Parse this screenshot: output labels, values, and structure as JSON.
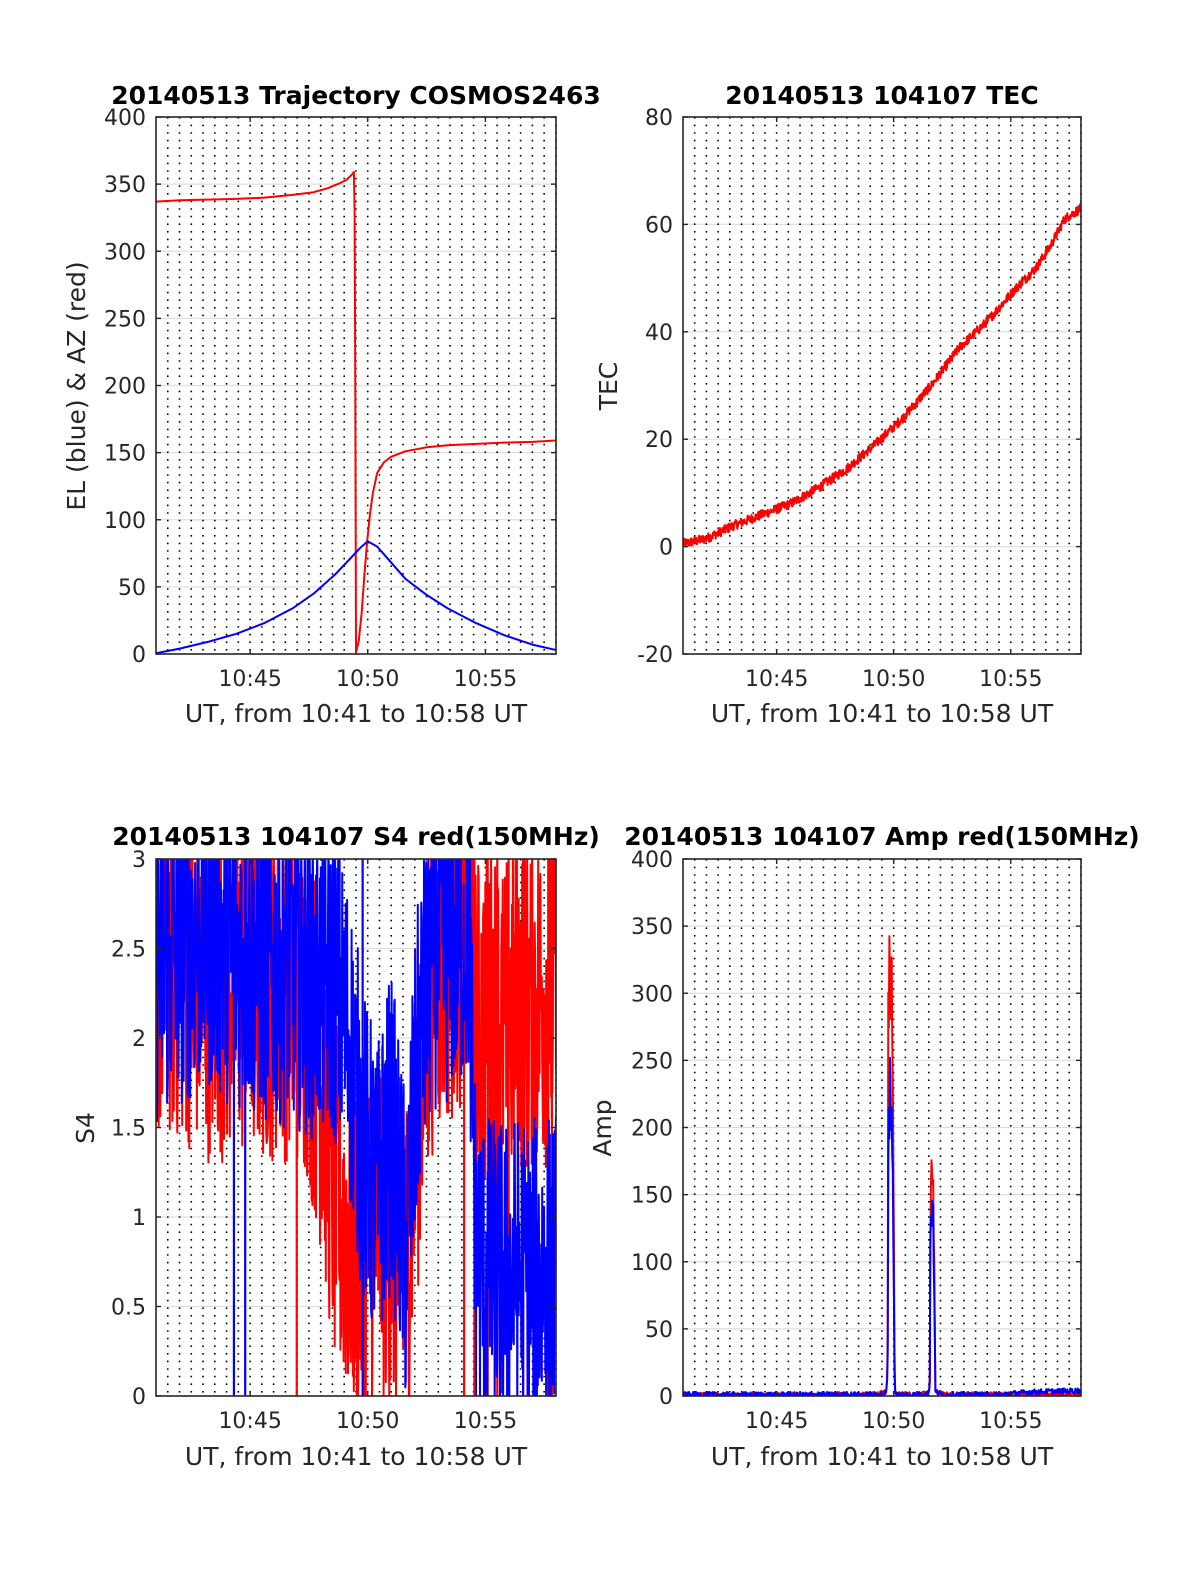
{
  "chart_data": [
    {
      "type": "line",
      "title": "20140513 Trajectory COSMOS2463",
      "xlabel": "UT, from 10:41 to 10:58 UT",
      "ylabel": "EL (blue) & AZ (red)",
      "xlim": [
        10.6833,
        10.9667
      ],
      "ylim": [
        0,
        400
      ],
      "yticks": [
        0,
        50,
        100,
        150,
        200,
        250,
        300,
        350,
        400
      ],
      "ytick_labels": [
        "0",
        "50",
        "100",
        "150",
        "200",
        "250",
        "300",
        "350",
        "400"
      ],
      "xticks": [
        10.75,
        10.8333,
        10.9167
      ],
      "xtick_labels": [
        "10:45",
        "10:50",
        "10:55"
      ],
      "grid": "y solid, x dotted every 30 s",
      "series": [
        {
          "color": "#ff0000",
          "x": [
            10.6833,
            10.7,
            10.72,
            10.74,
            10.76,
            10.78,
            10.795,
            10.805,
            10.812,
            10.818,
            10.822,
            10.8235,
            10.824,
            10.8245,
            10.825,
            10.827,
            10.829,
            10.831,
            10.833,
            10.835,
            10.837,
            10.84,
            10.845,
            10.85,
            10.86,
            10.875,
            10.89,
            10.91,
            10.93,
            10.95,
            10.9667
          ],
          "y": [
            337,
            338,
            338.5,
            339,
            340,
            342,
            344,
            347,
            350,
            353,
            357,
            359,
            330,
            200,
            1,
            10,
            30,
            60,
            85,
            105,
            120,
            135,
            143,
            147,
            151,
            154,
            155.5,
            156.5,
            157.5,
            158,
            159
          ]
        },
        {
          "color": "#0000ff",
          "x": [
            10.6833,
            10.7,
            10.72,
            10.74,
            10.76,
            10.78,
            10.795,
            10.81,
            10.82,
            10.828,
            10.8333,
            10.84,
            10.85,
            10.86,
            10.875,
            10.89,
            10.91,
            10.93,
            10.95,
            10.9667
          ],
          "y": [
            0.5,
            4,
            9,
            15,
            23,
            34,
            45,
            59,
            70,
            79,
            84,
            80,
            68,
            56,
            44,
            34,
            23,
            14,
            7,
            3
          ]
        }
      ]
    },
    {
      "type": "line",
      "title": "20140513 104107 TEC",
      "xlabel": "UT, from 10:41 to 10:58 UT",
      "ylabel": "TEC",
      "xlim": [
        10.6833,
        10.9667
      ],
      "ylim": [
        -20,
        80
      ],
      "yticks": [
        -20,
        0,
        20,
        40,
        60,
        80
      ],
      "ytick_labels": [
        "-20",
        "0",
        "20",
        "40",
        "60",
        "80"
      ],
      "xticks": [
        10.75,
        10.8333,
        10.9167
      ],
      "xtick_labels": [
        "10:45",
        "10:50",
        "10:55"
      ],
      "grid": "y solid, x dotted every 30 s",
      "series": [
        {
          "color": "#ff0000",
          "noise": 0.9,
          "x": [
            10.6833,
            10.7,
            10.72,
            10.74,
            10.76,
            10.78,
            10.8,
            10.82,
            10.84,
            10.86,
            10.88,
            10.9,
            10.92,
            10.935,
            10.945,
            10.955,
            10.9667
          ],
          "y": [
            0.5,
            1.5,
            4,
            6,
            8,
            11,
            14.5,
            19,
            24,
            30,
            37,
            42,
            48,
            52,
            56,
            61,
            63
          ]
        }
      ]
    },
    {
      "type": "line",
      "title": "20140513 104107 S4 red(150MHz)",
      "xlabel": "UT, from 10:41 to 10:58 UT",
      "ylabel": "S4",
      "xlim": [
        10.6833,
        10.9667
      ],
      "ylim": [
        0,
        3
      ],
      "yticks": [
        0,
        0.5,
        1,
        1.5,
        2,
        2.5,
        3
      ],
      "ytick_labels": [
        "0",
        "0.5",
        "1",
        "1.5",
        "2",
        "2.5",
        "3"
      ],
      "xticks": [
        10.75,
        10.8333,
        10.9167
      ],
      "xtick_labels": [
        "10:45",
        "10:50",
        "10:55"
      ],
      "grid": "y solid, x dotted every 30 s",
      "series": [
        {
          "color": "#ff0000",
          "noise": 1.0,
          "x": [
            10.6833,
            10.7,
            10.72,
            10.74,
            10.76,
            10.78,
            10.79,
            10.8,
            10.81,
            10.82,
            10.83,
            10.84,
            10.85,
            10.86,
            10.87,
            10.88,
            10.89,
            10.9,
            10.905,
            10.91,
            10.92,
            10.93,
            10.94,
            10.95,
            10.9667
          ],
          "y": [
            2.4,
            2.4,
            2.3,
            2.3,
            2.3,
            2.3,
            2.2,
            1.8,
            1.1,
            0.9,
            0.8,
            1.0,
            0.9,
            0.7,
            1.7,
            2.4,
            2.5,
            2.6,
            2.6,
            2.0,
            2.2,
            2.0,
            2.2,
            2.2,
            2.3
          ],
          "drops_x": [
            10.783,
            10.9016,
            10.9089,
            10.9183,
            10.9251,
            10.9331,
            10.9434,
            10.9612,
            10.9638
          ]
        },
        {
          "color": "#0000ff",
          "noise": 0.9,
          "x": [
            10.6833,
            10.7,
            10.72,
            10.74,
            10.76,
            10.78,
            10.8,
            10.81,
            10.82,
            10.83,
            10.84,
            10.85,
            10.86,
            10.87,
            10.88,
            10.89,
            10.9,
            10.905,
            10.91,
            10.92,
            10.93,
            10.94,
            10.95,
            10.9667
          ],
          "y": [
            2.4,
            2.5,
            2.6,
            2.5,
            2.4,
            2.4,
            2.3,
            2.3,
            2.0,
            1.4,
            1.1,
            1.5,
            0.8,
            2.0,
            2.5,
            2.5,
            2.6,
            2.6,
            0.75,
            0.68,
            0.66,
            0.7,
            0.66,
            0.72
          ],
          "drops_x": [
            10.7385,
            10.7465,
            10.8297
          ]
        }
      ]
    },
    {
      "type": "line",
      "title": "20140513 104107 Amp red(150MHz)",
      "xlabel": "UT, from 10:41 to 10:58 UT",
      "ylabel": "Amp",
      "xlim": [
        10.6833,
        10.9667
      ],
      "ylim": [
        0,
        400
      ],
      "yticks": [
        0,
        50,
        100,
        150,
        200,
        250,
        300,
        350,
        400
      ],
      "ytick_labels": [
        "0",
        "50",
        "100",
        "150",
        "200",
        "250",
        "300",
        "350",
        "400"
      ],
      "xticks": [
        10.75,
        10.8333,
        10.9167
      ],
      "xtick_labels": [
        "10:45",
        "10:50",
        "10:55"
      ],
      "grid": "y solid, x dotted every 30 s",
      "series": [
        {
          "color": "#ff0000",
          "x": [
            10.6833,
            10.82,
            10.828,
            10.829,
            10.8295,
            10.831,
            10.8325,
            10.834,
            10.8345,
            10.835,
            10.84,
            10.85,
            10.858,
            10.859,
            10.8595,
            10.861,
            10.862,
            10.863,
            10.87,
            10.9667
          ],
          "y": [
            0.5,
            1,
            3,
            20,
            300,
            330,
            290,
            12,
            4,
            2,
            1,
            1,
            2,
            10,
            150,
            172,
            120,
            4,
            1,
            1
          ]
        },
        {
          "color": "#0000ff",
          "x": [
            10.6833,
            10.82,
            10.828,
            10.829,
            10.8295,
            10.831,
            10.8325,
            10.834,
            10.8345,
            10.835,
            10.84,
            10.85,
            10.858,
            10.859,
            10.8595,
            10.861,
            10.862,
            10.863,
            10.87,
            10.91,
            10.93,
            10.9667
          ],
          "y": [
            1,
            1,
            2,
            15,
            200,
            235,
            190,
            8,
            3,
            1,
            1,
            1,
            2,
            8,
            130,
            150,
            100,
            3,
            1,
            1,
            3,
            4
          ]
        }
      ]
    }
  ]
}
